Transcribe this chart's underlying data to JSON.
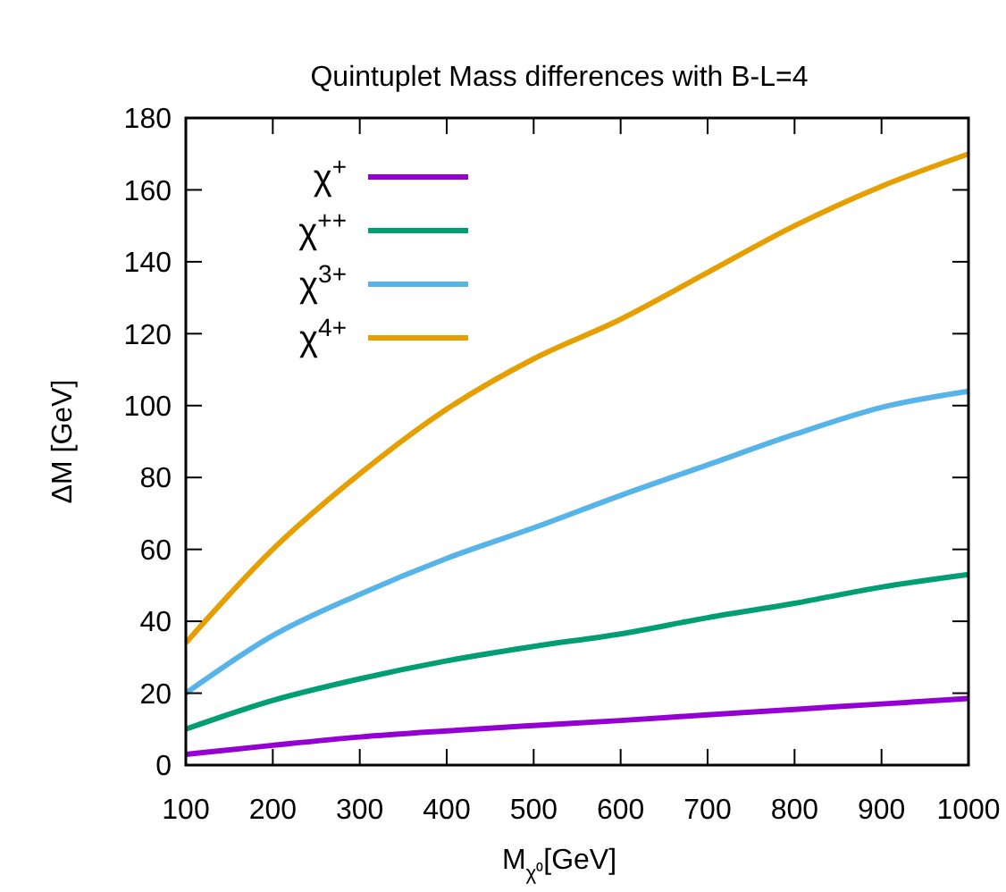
{
  "chart_data": {
    "type": "line",
    "title": "Quintuplet Mass differences with B-L=4",
    "xlabel": "M$_{χ⁰}$[GeV]",
    "ylabel": "ΔM [GeV]",
    "x": [
      100,
      200,
      300,
      400,
      500,
      600,
      700,
      800,
      900,
      1000
    ],
    "series": [
      {
        "name": "χ$^{+}$",
        "color": "#9400d3",
        "values": [
          3,
          5.5,
          7.8,
          9.5,
          11,
          12.4,
          14,
          15.5,
          17,
          18.5
        ]
      },
      {
        "name": "χ$^{++}$",
        "color": "#009e73",
        "values": [
          10,
          18,
          24,
          29,
          33,
          36.5,
          41,
          45,
          49.5,
          53
        ]
      },
      {
        "name": "χ$^{3+}$",
        "color": "#56b4e9",
        "values": [
          20,
          36,
          47.5,
          57.5,
          66,
          75,
          83.5,
          92,
          99.5,
          104
        ]
      },
      {
        "name": "χ$^{4+}$",
        "color": "#e69f00",
        "values": [
          34,
          60,
          81,
          99,
          113,
          124,
          137,
          150,
          161,
          170
        ]
      }
    ],
    "xlim": [
      100,
      1000
    ],
    "ylim": [
      0,
      180
    ],
    "xticks": [
      100,
      200,
      300,
      400,
      500,
      600,
      700,
      800,
      900,
      1000
    ],
    "yticks": [
      0,
      20,
      40,
      60,
      80,
      100,
      120,
      140,
      160,
      180
    ],
    "legend": "top left",
    "marker": "none",
    "line_style": "solid",
    "grid": false
  }
}
